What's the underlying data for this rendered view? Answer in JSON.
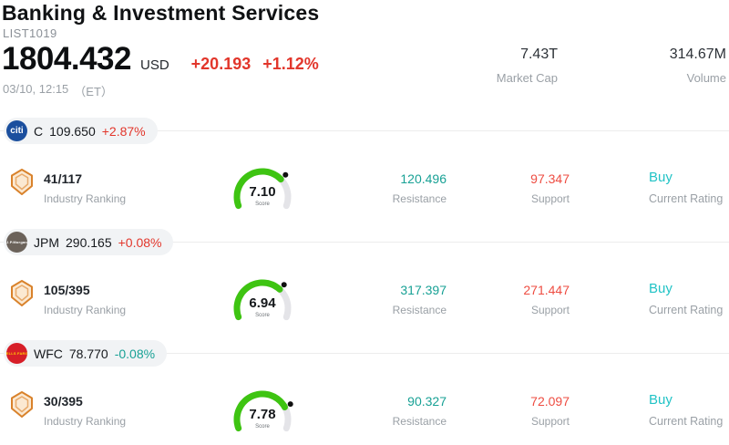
{
  "header": {
    "title": "Banking & Investment Services",
    "list_id": "LIST1019",
    "price": "1804.432",
    "currency": "USD",
    "change": "+20.193",
    "change_pct": "+1.12%",
    "change_color": "#e2362b",
    "timestamp": "03/10, 12:15",
    "timezone": "（ET）",
    "market_cap": {
      "value": "7.43T",
      "label": "Market Cap"
    },
    "volume": {
      "value": "314.67M",
      "label": "Volume"
    }
  },
  "stocks": [
    {
      "ticker": "C",
      "price": "109.650",
      "change_pct": "+2.87%",
      "change_color": "#e2362b",
      "logo": {
        "text": "citi",
        "bg": "#1b4f9e",
        "fg": "#ffffff"
      },
      "ranking": "41/117",
      "ranking_label": "Industry Ranking",
      "score": "7.10",
      "score_label": "Score",
      "resistance": "120.496",
      "resistance_label": "Resistance",
      "resistance_color": "#18a195",
      "support": "97.347",
      "support_label": "Support",
      "support_color": "#ee4d42",
      "rating": "Buy",
      "rating_label": "Current Rating",
      "rating_color": "#22c3c6"
    },
    {
      "ticker": "JPM",
      "price": "290.165",
      "change_pct": "+0.08%",
      "change_color": "#e2362b",
      "logo": {
        "text": "J.P.Morgan",
        "bg": "#6b625a",
        "fg": "#ffffff"
      },
      "ranking": "105/395",
      "ranking_label": "Industry Ranking",
      "score": "6.94",
      "score_label": "Score",
      "resistance": "317.397",
      "resistance_label": "Resistance",
      "resistance_color": "#18a195",
      "support": "271.447",
      "support_label": "Support",
      "support_color": "#ee4d42",
      "rating": "Buy",
      "rating_label": "Current Rating",
      "rating_color": "#22c3c6"
    },
    {
      "ticker": "WFC",
      "price": "78.770",
      "change_pct": "-0.08%",
      "change_color": "#18a195",
      "logo": {
        "text": "WELLS FARGO",
        "bg": "#d71e28",
        "fg": "#ffd200"
      },
      "ranking": "30/395",
      "ranking_label": "Industry Ranking",
      "score": "7.78",
      "score_label": "Score",
      "resistance": "90.327",
      "resistance_label": "Resistance",
      "resistance_color": "#18a195",
      "support": "72.097",
      "support_label": "Support",
      "support_color": "#ee4d42",
      "rating": "Buy",
      "rating_label": "Current Rating",
      "rating_color": "#22c3c6"
    }
  ],
  "gauge_colors": {
    "arc_active": "#3ec412",
    "arc_rest": "#e4e4e8",
    "dot": "#111111"
  }
}
